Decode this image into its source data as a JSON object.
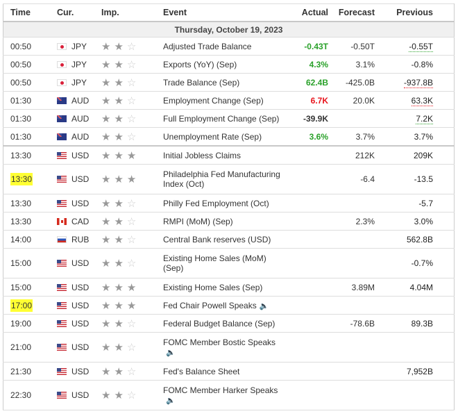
{
  "headers": {
    "time": "Time",
    "cur": "Cur.",
    "imp": "Imp.",
    "event": "Event",
    "actual": "Actual",
    "forecast": "Forecast",
    "previous": "Previous"
  },
  "date": "Thursday, October 19, 2023",
  "colors": {
    "better": "#2aa12a",
    "worse": "#e8141c",
    "highlight": "#ffff33"
  },
  "rows": [
    {
      "time": "00:50",
      "flag": "jp",
      "cur": "JPY",
      "stars": 2,
      "event": "Adjusted Trade Balance",
      "actual": "-0.43T",
      "actual_color": "green",
      "forecast": "-0.50T",
      "previous": "-0.55T",
      "prev_color": "green"
    },
    {
      "time": "00:50",
      "flag": "jp",
      "cur": "JPY",
      "stars": 2,
      "event": "Exports (YoY) (Sep)",
      "actual": "4.3%",
      "actual_color": "green",
      "forecast": "3.1%",
      "previous": "-0.8%"
    },
    {
      "time": "00:50",
      "flag": "jp",
      "cur": "JPY",
      "stars": 2,
      "event": "Trade Balance (Sep)",
      "actual": "62.4B",
      "actual_color": "green",
      "forecast": "-425.0B",
      "previous": "-937.8B",
      "prev_color": "red"
    },
    {
      "time": "01:30",
      "flag": "au",
      "cur": "AUD",
      "stars": 2,
      "event": "Employment Change (Sep)",
      "actual": "6.7K",
      "actual_color": "red",
      "forecast": "20.0K",
      "previous": "63.3K",
      "prev_color": "red"
    },
    {
      "time": "01:30",
      "flag": "au",
      "cur": "AUD",
      "stars": 2,
      "event": "Full Employment Change (Sep)",
      "actual": "-39.9K",
      "forecast": "",
      "previous": "7.2K",
      "prev_color": "green"
    },
    {
      "time": "01:30",
      "flag": "au",
      "cur": "AUD",
      "stars": 2,
      "event": "Unemployment Rate (Sep)",
      "actual": "3.6%",
      "actual_color": "green",
      "forecast": "3.7%",
      "previous": "3.7%",
      "sep": true
    },
    {
      "time": "13:30",
      "flag": "us",
      "cur": "USD",
      "stars": 3,
      "event": "Initial Jobless Claims",
      "actual": "",
      "forecast": "212K",
      "previous": "209K"
    },
    {
      "time": "13:30",
      "flag": "us",
      "cur": "USD",
      "stars": 3,
      "event": "Philadelphia Fed Manufacturing Index (Oct)",
      "actual": "",
      "forecast": "-6.4",
      "previous": "-13.5",
      "highlight": true,
      "tall": true
    },
    {
      "time": "13:30",
      "flag": "us",
      "cur": "USD",
      "stars": 2,
      "event": "Philly Fed Employment (Oct)",
      "actual": "",
      "forecast": "",
      "previous": "-5.7"
    },
    {
      "time": "13:30",
      "flag": "ca",
      "cur": "CAD",
      "stars": 2,
      "event": "RMPI (MoM) (Sep)",
      "actual": "",
      "forecast": "2.3%",
      "previous": "3.0%"
    },
    {
      "time": "14:00",
      "flag": "ru",
      "cur": "RUB",
      "stars": 2,
      "event": "Central Bank reserves (USD)",
      "actual": "",
      "forecast": "",
      "previous": "562.8B"
    },
    {
      "time": "15:00",
      "flag": "us",
      "cur": "USD",
      "stars": 2,
      "event": "Existing Home Sales (MoM) (Sep)",
      "actual": "",
      "forecast": "",
      "previous": "-0.7%",
      "tall": true
    },
    {
      "time": "15:00",
      "flag": "us",
      "cur": "USD",
      "stars": 3,
      "event": "Existing Home Sales (Sep)",
      "actual": "",
      "forecast": "3.89M",
      "previous": "4.04M"
    },
    {
      "time": "17:00",
      "flag": "us",
      "cur": "USD",
      "stars": 3,
      "event": "Fed Chair Powell Speaks",
      "actual": "",
      "forecast": "",
      "previous": "",
      "highlight": true,
      "speech": "inline"
    },
    {
      "time": "19:00",
      "flag": "us",
      "cur": "USD",
      "stars": 2,
      "event": "Federal Budget Balance (Sep)",
      "actual": "",
      "forecast": "-78.6B",
      "previous": "89.3B"
    },
    {
      "time": "21:00",
      "flag": "us",
      "cur": "USD",
      "stars": 2,
      "event": "FOMC Member Bostic Speaks",
      "actual": "",
      "forecast": "",
      "previous": "",
      "speech": "below",
      "tall": true
    },
    {
      "time": "21:30",
      "flag": "us",
      "cur": "USD",
      "stars": 2,
      "event": "Fed's Balance Sheet",
      "actual": "",
      "forecast": "",
      "previous": "7,952B"
    },
    {
      "time": "22:30",
      "flag": "us",
      "cur": "USD",
      "stars": 2,
      "event": "FOMC Member Harker Speaks",
      "actual": "",
      "forecast": "",
      "previous": "",
      "speech": "below",
      "tall": true
    }
  ]
}
